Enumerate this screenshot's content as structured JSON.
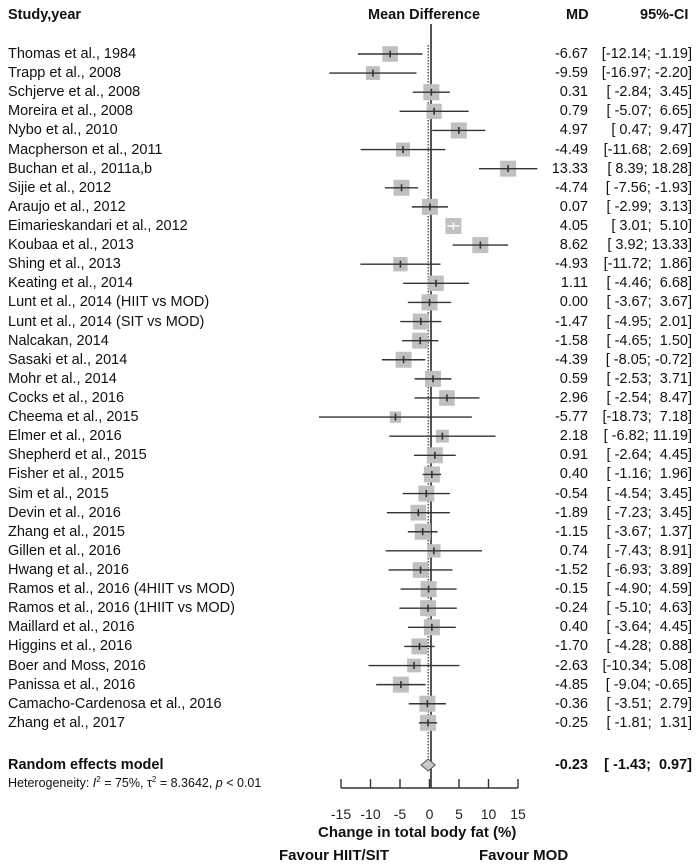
{
  "chart_data": {
    "type": "forest",
    "title": "",
    "headers": {
      "study": "Study,year",
      "plot": "Mean Difference",
      "md": "MD",
      "ci": "95%-CI"
    },
    "xlabel": "Change in total body fat (%)",
    "xlim": [
      -15,
      15
    ],
    "xticks": [
      -15,
      -10,
      -5,
      0,
      5,
      10,
      15
    ],
    "favour_left": "Favour HIIT/SIT",
    "favour_right": "Favour MOD",
    "studies": [
      {
        "name": "Thomas et al., 1984",
        "md": -6.67,
        "lower": -12.14,
        "upper": -1.19
      },
      {
        "name": "Trapp et al., 2008",
        "md": -9.59,
        "lower": -16.97,
        "upper": -2.2
      },
      {
        "name": "Schjerve et al., 2008",
        "md": 0.31,
        "lower": -2.84,
        "upper": 3.45
      },
      {
        "name": "Moreira et al., 2008",
        "md": 0.79,
        "lower": -5.07,
        "upper": 6.65
      },
      {
        "name": "Nybo et al., 2010",
        "md": 4.97,
        "lower": 0.47,
        "upper": 9.47
      },
      {
        "name": "Macpherson et al., 2011",
        "md": -4.49,
        "lower": -11.68,
        "upper": 2.69
      },
      {
        "name": "Buchan et al., 2011a,b",
        "md": 13.33,
        "lower": 8.39,
        "upper": 18.28
      },
      {
        "name": "Sijie et al., 2012",
        "md": -4.74,
        "lower": -7.56,
        "upper": -1.93
      },
      {
        "name": "Araujo et al., 2012",
        "md": 0.07,
        "lower": -2.99,
        "upper": 3.13
      },
      {
        "name": "Eimarieskandari et al., 2012",
        "md": 4.05,
        "lower": 3.01,
        "upper": 5.1
      },
      {
        "name": "Koubaa et al., 2013",
        "md": 8.62,
        "lower": 3.92,
        "upper": 13.33
      },
      {
        "name": "Shing et al., 2013",
        "md": -4.93,
        "lower": -11.72,
        "upper": 1.86
      },
      {
        "name": "Keating et al., 2014",
        "md": 1.11,
        "lower": -4.46,
        "upper": 6.68
      },
      {
        "name": "Lunt et al., 2014 (HIIT vs MOD)",
        "md": 0.0,
        "lower": -3.67,
        "upper": 3.67
      },
      {
        "name": "Lunt et al., 2014 (SIT vs MOD)",
        "md": -1.47,
        "lower": -4.95,
        "upper": 2.01
      },
      {
        "name": "Nalcakan, 2014",
        "md": -1.58,
        "lower": -4.65,
        "upper": 1.5
      },
      {
        "name": "Sasaki et al., 2014",
        "md": -4.39,
        "lower": -8.05,
        "upper": -0.72
      },
      {
        "name": "Mohr et al., 2014",
        "md": 0.59,
        "lower": -2.53,
        "upper": 3.71
      },
      {
        "name": "Cocks et al., 2016",
        "md": 2.96,
        "lower": -2.54,
        "upper": 8.47
      },
      {
        "name": "Cheema et al., 2015",
        "md": -5.77,
        "lower": -18.73,
        "upper": 7.18
      },
      {
        "name": "Elmer et al., 2016",
        "md": 2.18,
        "lower": -6.82,
        "upper": 11.19
      },
      {
        "name": "Shepherd et al., 2015",
        "md": 0.91,
        "lower": -2.64,
        "upper": 4.45
      },
      {
        "name": "Fisher et al., 2015",
        "md": 0.4,
        "lower": -1.16,
        "upper": 1.96
      },
      {
        "name": "Sim et al., 2015",
        "md": -0.54,
        "lower": -4.54,
        "upper": 3.45
      },
      {
        "name": "Devin et al., 2016",
        "md": -1.89,
        "lower": -7.23,
        "upper": 3.45
      },
      {
        "name": "Zhang et al., 2015",
        "md": -1.15,
        "lower": -3.67,
        "upper": 1.37
      },
      {
        "name": "Gillen et al., 2016",
        "md": 0.74,
        "lower": -7.43,
        "upper": 8.91
      },
      {
        "name": "Hwang et al., 2016",
        "md": -1.52,
        "lower": -6.93,
        "upper": 3.89
      },
      {
        "name": "Ramos et al., 2016 (4HIIT vs MOD)",
        "md": -0.15,
        "lower": -4.9,
        "upper": 4.59
      },
      {
        "name": "Ramos et al., 2016 (1HIIT vs MOD)",
        "md": -0.24,
        "lower": -5.1,
        "upper": 4.63
      },
      {
        "name": "Maillard et al., 2016",
        "md": 0.4,
        "lower": -3.64,
        "upper": 4.45
      },
      {
        "name": "Higgins et al., 2016",
        "md": -1.7,
        "lower": -4.28,
        "upper": 0.88
      },
      {
        "name": "Boer and Moss, 2016",
        "md": -2.63,
        "lower": -10.34,
        "upper": 5.08
      },
      {
        "name": "Panissa et al., 2016",
        "md": -4.85,
        "lower": -9.04,
        "upper": -0.65
      },
      {
        "name": "Camacho-Cardenosa et al., 2016",
        "md": -0.36,
        "lower": -3.51,
        "upper": 2.79
      },
      {
        "name": "Zhang et al., 2017",
        "md": -0.25,
        "lower": -1.81,
        "upper": 1.31
      }
    ],
    "summary": {
      "name": "Random effects model",
      "md": -0.23,
      "lower": -1.43,
      "upper": 0.97
    },
    "heterogeneity": {
      "prefix": "Heterogeneity: ",
      "i2_label": "I",
      "i2_value": "75%",
      "tau2_label": "τ",
      "tau2_value": "8.3642",
      "p_label": "p",
      "p_value": "< 0.01"
    },
    "colors": {
      "box": "#c0c0c0",
      "line": "#333333",
      "diamond": "#c8c8c8",
      "zero_line": "#555555"
    }
  }
}
